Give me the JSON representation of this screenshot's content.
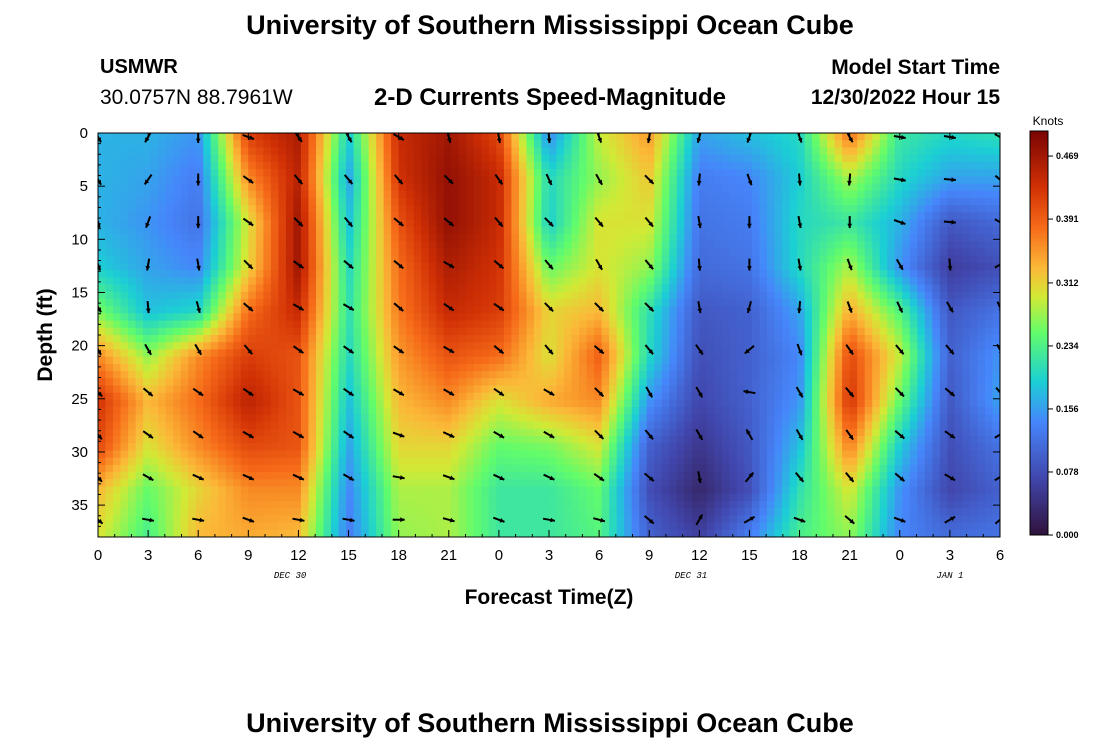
{
  "page": {
    "main_title": "University of Southern Mississippi Ocean Cube",
    "bottom_title": "University of Southern Mississippi Ocean Cube",
    "station": {
      "id": "USMWR",
      "coords": "30.0757N  88.7961W"
    },
    "plot_title": "2-D Currents Speed-Magnitude",
    "model_start": {
      "label": "Model Start Time",
      "value": "12/30/2022 Hour 15"
    }
  },
  "chart_data": {
    "type": "heatmap",
    "title": "2-D Currents Speed-Magnitude",
    "xlabel": "Forecast Time(Z)",
    "ylabel": "Depth (ft)",
    "x_hours_range": [
      0,
      54
    ],
    "y_depth_range": [
      0,
      38
    ],
    "x_tick_labels": [
      "0",
      "3",
      "6",
      "9",
      "12",
      "15",
      "18",
      "21",
      "0",
      "3",
      "6",
      "9",
      "12",
      "15",
      "18",
      "21",
      "0",
      "3",
      "6"
    ],
    "y_ticks": [
      0,
      5,
      10,
      15,
      20,
      25,
      30,
      35
    ],
    "date_labels": [
      {
        "text": "DEC 30",
        "hour": 11.5
      },
      {
        "text": "DEC 31",
        "hour": 35.5
      },
      {
        "text": "JAN 1",
        "hour": 51
      }
    ],
    "colorbar": {
      "unit": "Knots",
      "min": 0.0,
      "max": 0.5,
      "labels": [
        "0.469",
        "0.391",
        "0.312",
        "0.234",
        "0.156",
        "0.078",
        "0.000"
      ],
      "label_values": [
        0.469,
        0.391,
        0.312,
        0.234,
        0.156,
        0.078,
        0.0
      ]
    },
    "grid_depths": [
      0,
      4.2,
      8.4,
      12.6,
      16.8,
      21,
      25.2,
      29.4,
      33.6,
      37.8
    ],
    "speed_columns": [
      {
        "hour": 0,
        "speeds": [
          0.17,
          0.17,
          0.17,
          0.19,
          0.26,
          0.36,
          0.43,
          0.41,
          0.33,
          0.3
        ]
      },
      {
        "hour": 3,
        "speeds": [
          0.17,
          0.16,
          0.15,
          0.16,
          0.18,
          0.27,
          0.33,
          0.3,
          0.25,
          0.23
        ]
      },
      {
        "hour": 6,
        "speeds": [
          0.15,
          0.13,
          0.12,
          0.14,
          0.2,
          0.36,
          0.38,
          0.36,
          0.31,
          0.33
        ]
      },
      {
        "hour": 9,
        "speeds": [
          0.42,
          0.36,
          0.3,
          0.31,
          0.38,
          0.42,
          0.45,
          0.41,
          0.36,
          0.34
        ]
      },
      {
        "hour": 12,
        "speeds": [
          0.46,
          0.45,
          0.47,
          0.47,
          0.44,
          0.4,
          0.4,
          0.4,
          0.36,
          0.33
        ]
      },
      {
        "hour": 15,
        "speeds": [
          0.19,
          0.16,
          0.18,
          0.2,
          0.21,
          0.2,
          0.18,
          0.16,
          0.14,
          0.13
        ]
      },
      {
        "hour": 18,
        "speeds": [
          0.44,
          0.43,
          0.4,
          0.38,
          0.37,
          0.35,
          0.33,
          0.31,
          0.28,
          0.27
        ]
      },
      {
        "hour": 21,
        "speeds": [
          0.47,
          0.48,
          0.48,
          0.46,
          0.44,
          0.4,
          0.36,
          0.31,
          0.28,
          0.28
        ]
      },
      {
        "hour": 24,
        "speeds": [
          0.41,
          0.44,
          0.44,
          0.43,
          0.42,
          0.38,
          0.3,
          0.25,
          0.22,
          0.22
        ]
      },
      {
        "hour": 27,
        "speeds": [
          0.14,
          0.2,
          0.19,
          0.25,
          0.31,
          0.3,
          0.34,
          0.26,
          0.22,
          0.22
        ]
      },
      {
        "hour": 30,
        "speeds": [
          0.29,
          0.27,
          0.3,
          0.3,
          0.33,
          0.39,
          0.36,
          0.3,
          0.25,
          0.24
        ]
      },
      {
        "hour": 33,
        "speeds": [
          0.35,
          0.32,
          0.3,
          0.27,
          0.21,
          0.2,
          0.15,
          0.1,
          0.08,
          0.1
        ]
      },
      {
        "hour": 36,
        "speeds": [
          0.16,
          0.13,
          0.12,
          0.11,
          0.09,
          0.08,
          0.07,
          0.05,
          0.03,
          0.06
        ]
      },
      {
        "hour": 39,
        "speeds": [
          0.18,
          0.14,
          0.13,
          0.12,
          0.1,
          0.1,
          0.1,
          0.09,
          0.08,
          0.13
        ]
      },
      {
        "hour": 42,
        "speeds": [
          0.2,
          0.19,
          0.2,
          0.2,
          0.16,
          0.14,
          0.15,
          0.18,
          0.21,
          0.23
        ]
      },
      {
        "hour": 45,
        "speeds": [
          0.38,
          0.28,
          0.22,
          0.28,
          0.34,
          0.41,
          0.43,
          0.37,
          0.3,
          0.27
        ]
      },
      {
        "hour": 48,
        "speeds": [
          0.22,
          0.2,
          0.17,
          0.15,
          0.24,
          0.29,
          0.25,
          0.19,
          0.15,
          0.14
        ]
      },
      {
        "hour": 51,
        "speeds": [
          0.2,
          0.16,
          0.09,
          0.06,
          0.09,
          0.1,
          0.09,
          0.08,
          0.07,
          0.11
        ]
      },
      {
        "hour": 54,
        "speeds": [
          0.21,
          0.16,
          0.11,
          0.08,
          0.12,
          0.15,
          0.16,
          0.12,
          0.1,
          0.12
        ]
      }
    ],
    "vectors": {
      "hours": [
        0,
        3,
        6,
        9,
        12,
        15,
        18,
        21,
        24,
        27,
        30,
        33,
        36,
        39,
        42,
        45,
        48,
        51,
        54
      ],
      "depths": [
        0,
        4,
        8,
        12,
        16,
        20,
        24,
        28,
        32,
        36
      ],
      "direction_deg": [
        [
          150,
          210,
          180,
          110,
          145,
          150,
          120,
          165,
          170,
          175,
          160,
          190,
          195,
          200,
          160,
          150,
          100,
          100,
          120
        ],
        [
          150,
          215,
          180,
          125,
          140,
          140,
          140,
          135,
          145,
          155,
          150,
          135,
          185,
          160,
          175,
          185,
          100,
          95,
          130
        ],
        [
          165,
          200,
          180,
          125,
          135,
          140,
          130,
          130,
          140,
          135,
          140,
          140,
          170,
          180,
          170,
          180,
          110,
          95,
          120
        ],
        [
          160,
          190,
          170,
          135,
          125,
          130,
          130,
          120,
          130,
          140,
          150,
          140,
          175,
          180,
          170,
          160,
          150,
          175,
          60
        ],
        [
          150,
          175,
          165,
          130,
          120,
          120,
          130,
          125,
          125,
          135,
          135,
          135,
          170,
          195,
          185,
          160,
          155,
          150,
          155
        ],
        [
          150,
          150,
          150,
          140,
          125,
          125,
          125,
          120,
          130,
          140,
          130,
          140,
          145,
          230,
          160,
          145,
          140,
          140,
          150
        ],
        [
          135,
          130,
          125,
          125,
          120,
          125,
          120,
          120,
          125,
          120,
          135,
          150,
          150,
          280,
          150,
          140,
          135,
          130,
          140
        ],
        [
          140,
          125,
          125,
          120,
          120,
          125,
          110,
          115,
          120,
          120,
          135,
          140,
          150,
          330,
          150,
          145,
          130,
          125,
          60
        ],
        [
          140,
          120,
          115,
          115,
          115,
          120,
          100,
          110,
          115,
          115,
          125,
          130,
          170,
          40,
          140,
          140,
          130,
          120,
          60
        ],
        [
          130,
          100,
          100,
          110,
          100,
          100,
          90,
          105,
          110,
          100,
          105,
          130,
          30,
          60,
          110,
          130,
          110,
          60,
          50
        ]
      ]
    }
  }
}
